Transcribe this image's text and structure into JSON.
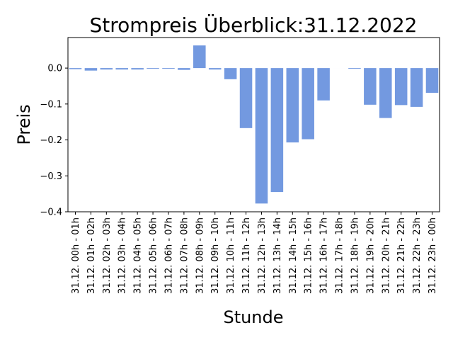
{
  "chart_data": {
    "type": "bar",
    "title": "Strompreis Überblick:31.12.2022",
    "xlabel": "Stunde",
    "ylabel": "Preis",
    "ylim": [
      -0.4,
      0.085
    ],
    "yticks": [
      -0.4,
      -0.3,
      -0.2,
      -0.1,
      0.0
    ],
    "ytick_labels": [
      "−0.4",
      "−0.3",
      "−0.2",
      "−0.1",
      "0.0"
    ],
    "bar_color": "#7399e0",
    "grid": false,
    "categories": [
      "31.12. 00h - 01h",
      "31.12. 01h - 02h",
      "31.12. 02h - 03h",
      "31.12. 03h - 04h",
      "31.12. 04h - 05h",
      "31.12. 05h - 06h",
      "31.12. 06h - 07h",
      "31.12. 07h - 08h",
      "31.12. 08h - 09h",
      "31.12. 09h - 10h",
      "31.12. 10h - 11h",
      "31.12. 11h - 12h",
      "31.12. 12h - 13h",
      "31.12. 13h - 14h",
      "31.12. 14h - 15h",
      "31.12. 15h - 16h",
      "31.12. 16h - 17h",
      "31.12. 17h - 18h",
      "31.12. 18h - 19h",
      "31.12. 19h - 20h",
      "31.12. 20h - 21h",
      "31.12. 21h - 22h",
      "31.12. 22h - 23h",
      "31.12. 23h - 00h"
    ],
    "values": [
      -0.003,
      -0.007,
      -0.004,
      -0.004,
      -0.004,
      -0.002,
      -0.002,
      -0.005,
      0.063,
      -0.004,
      -0.031,
      -0.167,
      -0.377,
      -0.345,
      -0.207,
      -0.198,
      -0.09,
      0.0,
      -0.002,
      -0.102,
      -0.139,
      -0.103,
      -0.108,
      -0.069
    ]
  }
}
